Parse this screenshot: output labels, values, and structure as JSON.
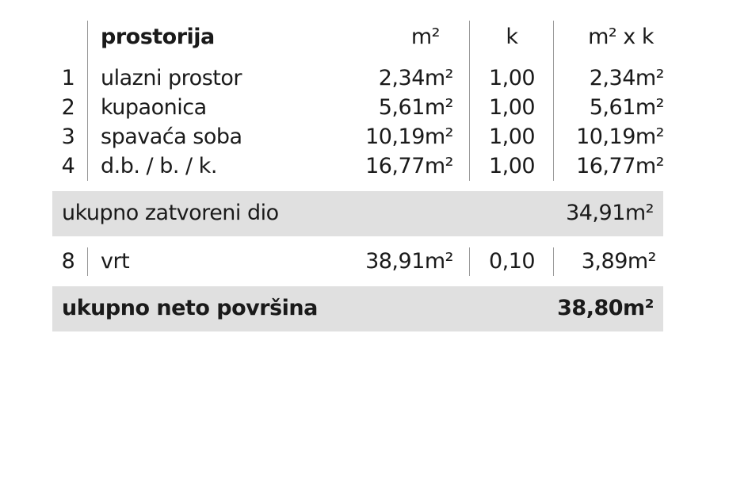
{
  "header": {
    "room": "prostorija",
    "area": "m²",
    "coef": "k",
    "product": "m² x k"
  },
  "rows": [
    {
      "no": "1",
      "name": "ulazni prostor",
      "area": "2,34m²",
      "k": "1,00",
      "product": "2,34m²"
    },
    {
      "no": "2",
      "name": "kupaonica",
      "area": "5,61m²",
      "k": "1,00",
      "product": "5,61m²"
    },
    {
      "no": "3",
      "name": "spavaća soba",
      "area": "10,19m²",
      "k": "1,00",
      "product": "10,19m²"
    },
    {
      "no": "4",
      "name": "d.b. / b. / k.",
      "area": "16,77m²",
      "k": "1,00",
      "product": "16,77m²"
    }
  ],
  "subtotal": {
    "label": "ukupno zatvoreni dio",
    "value": "34,91m²"
  },
  "garden": {
    "no": "8",
    "name": "vrt",
    "area": "38,91m²",
    "k": "0,10",
    "product": "3,89m²"
  },
  "total": {
    "label": "ukupno neto površina",
    "value": "38,80m²"
  },
  "colors": {
    "band": "#e0e0e0",
    "text": "#1a1a1a"
  }
}
